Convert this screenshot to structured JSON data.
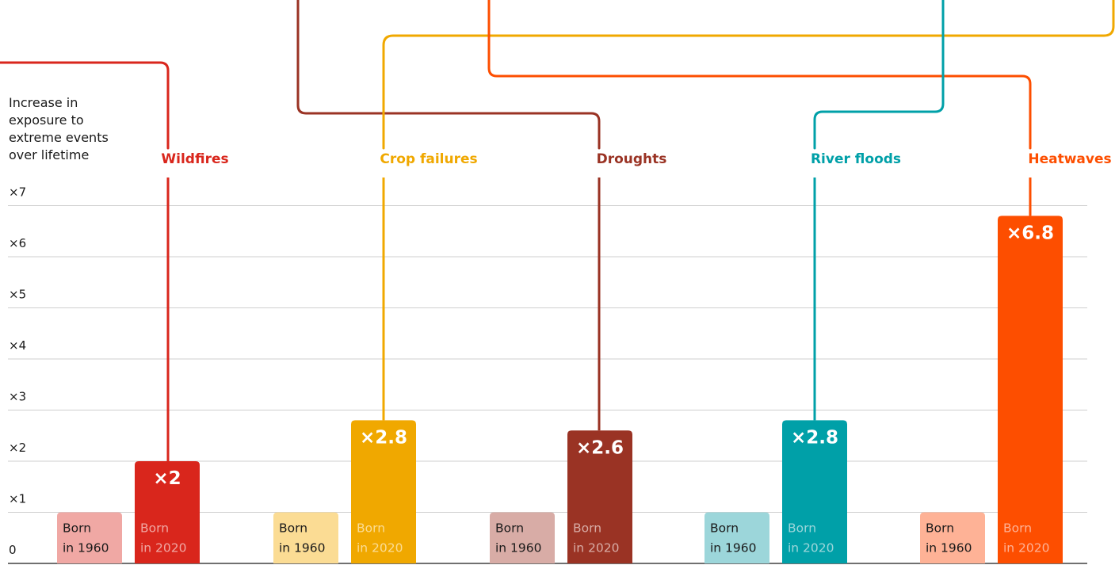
{
  "chart_data": {
    "type": "bar",
    "ylabel_lines": [
      "Increase in",
      "exposure to",
      "extreme events",
      "over lifetime"
    ],
    "yticks": [
      {
        "value": 0,
        "label": "0"
      },
      {
        "value": 1,
        "label": "×1"
      },
      {
        "value": 2,
        "label": "×2"
      },
      {
        "value": 3,
        "label": "×3"
      },
      {
        "value": 4,
        "label": "×4"
      },
      {
        "value": 5,
        "label": "×5"
      },
      {
        "value": 6,
        "label": "×6"
      },
      {
        "value": 7,
        "label": "×7"
      }
    ],
    "ylim": [
      0,
      7
    ],
    "grid": true,
    "series_labels": {
      "born_1960": [
        "Born",
        "in 1960"
      ],
      "born_2020": [
        "Born",
        "in 2020"
      ]
    },
    "categories": [
      {
        "name": "Wildfires",
        "born_1960": 1,
        "born_2020": 2,
        "label": "×2",
        "color": "#d9261c",
        "light_color": "#f0a8a4"
      },
      {
        "name": "Crop failures",
        "born_1960": 1,
        "born_2020": 2.8,
        "label": "×2.8",
        "color": "#f0a800",
        "light_color": "#fbdc94"
      },
      {
        "name": "Droughts",
        "born_1960": 1,
        "born_2020": 2.6,
        "label": "×2.6",
        "color": "#9a3324",
        "light_color": "#d8aca6"
      },
      {
        "name": "River floods",
        "born_1960": 1,
        "born_2020": 2.8,
        "label": "×2.8",
        "color": "#00a0a8",
        "light_color": "#9cd6da"
      },
      {
        "name": "Heatwaves",
        "born_1960": 1,
        "born_2020": 6.8,
        "label": "×6.8",
        "color": "#fd4e00",
        "light_color": "#feb296"
      }
    ]
  }
}
